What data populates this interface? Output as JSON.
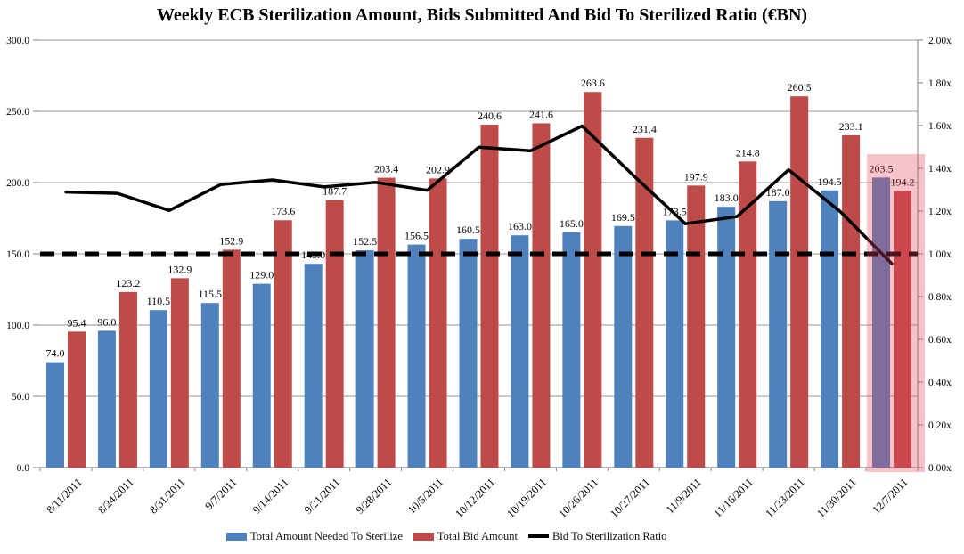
{
  "chart_data": {
    "type": "bar",
    "subtype": "bar+line-combo",
    "title": "Weekly ECB Sterilization Amount, Bids Submitted And Bid To Sterilized Ratio (€BN)",
    "categories": [
      "8/11/2011",
      "8/24/2011",
      "8/31/2011",
      "9/7/2011",
      "9/14/2011",
      "9/21/2011",
      "9/28/2011",
      "10/5/2011",
      "10/12/2011",
      "10/19/2011",
      "10/26/2011",
      "10/27/2011",
      "11/9/2011",
      "11/16/2011",
      "11/23/2011",
      "11/30/2011",
      "12/7/2011"
    ],
    "series": [
      {
        "name": "Total Amount Needed To Sterilize",
        "type": "bar",
        "axis": "left",
        "color": "#4F81BD",
        "values": [
          74.0,
          96.0,
          110.5,
          115.5,
          129.0,
          143.0,
          152.5,
          156.5,
          160.5,
          163.0,
          165.0,
          169.5,
          173.5,
          183.0,
          187.0,
          194.5,
          203.5
        ]
      },
      {
        "name": "Total Bid Amount",
        "type": "bar",
        "axis": "left",
        "color": "#BE4B48",
        "values": [
          95.4,
          123.2,
          132.9,
          152.9,
          173.6,
          187.7,
          203.4,
          202.9,
          240.6,
          241.6,
          263.6,
          231.4,
          197.9,
          214.8,
          260.5,
          233.1,
          194.2
        ]
      },
      {
        "name": "Bid To Sterilization Ratio",
        "type": "line",
        "axis": "right",
        "color": "#000000",
        "values": [
          1.289,
          1.283,
          1.203,
          1.324,
          1.346,
          1.313,
          1.334,
          1.297,
          1.499,
          1.482,
          1.598,
          1.365,
          1.141,
          1.174,
          1.393,
          1.198,
          0.954
        ]
      }
    ],
    "left_axis": {
      "min": 0,
      "max": 300,
      "step": 50,
      "labels": [
        "300.0",
        "250.0",
        "200.0",
        "150.0",
        "100.0",
        "50.0",
        "0.0"
      ]
    },
    "right_axis": {
      "min": 0,
      "max": 2,
      "step": 0.2,
      "labels": [
        "2.00x",
        "1.80x",
        "1.60x",
        "1.40x",
        "1.20x",
        "1.00x",
        "0.80x",
        "0.60x",
        "0.40x",
        "0.20x",
        "0.00x"
      ]
    },
    "reference_line": {
      "left_value": 150,
      "right_value": 1.0,
      "style": "dashed",
      "color": "#000000"
    },
    "highlight": {
      "category": "12/7/2011",
      "color": "#E8425A",
      "opacity": 0.32,
      "top_value": 220
    },
    "legend_position": "bottom",
    "grid": true,
    "value_labels_decimals": 1
  }
}
